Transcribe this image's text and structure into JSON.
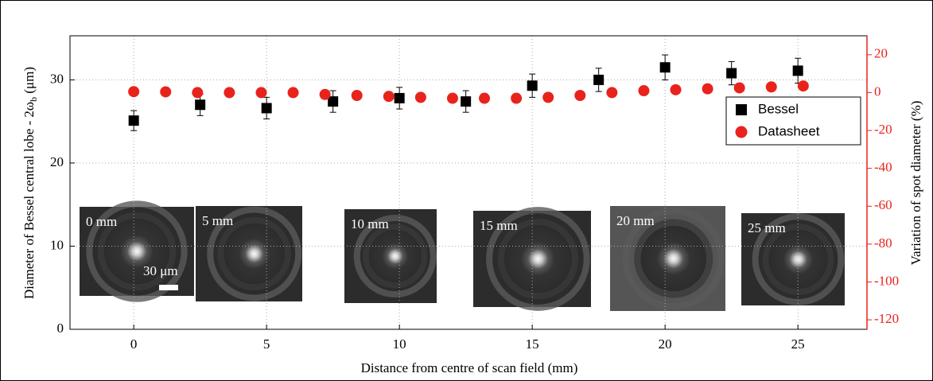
{
  "chart_data": {
    "type": "scatter",
    "xlabel": "Distance from centre of scan field (mm)",
    "ylabel": [
      "Diameter of Bessel central lobe - 2ω",
      "b",
      " (μm)"
    ],
    "y2label": "Variation of spot diameter (%)",
    "xlim": [
      -2.4,
      27.6
    ],
    "xticks": [
      0,
      5,
      10,
      15,
      20,
      25
    ],
    "ylim": [
      0,
      35.3
    ],
    "yticks": [
      0,
      10,
      20,
      30
    ],
    "y2lim": [
      -125,
      30
    ],
    "y2ticks": [
      -120,
      -100,
      -80,
      -60,
      -40,
      -20,
      0,
      20
    ],
    "y2color": "#e8231c",
    "grid": true,
    "legend": "upper right",
    "series": [
      {
        "name": "Bessel",
        "color": "#000000",
        "marker": "square",
        "x": [
          0,
          2.5,
          5,
          7.5,
          10,
          12.5,
          15,
          17.5,
          20,
          22.5,
          25
        ],
        "values": [
          25.1,
          27.0,
          26.6,
          27.4,
          27.8,
          27.4,
          29.3,
          30.0,
          31.5,
          30.8,
          31.1
        ],
        "errors": [
          1.2,
          1.3,
          1.3,
          1.3,
          1.3,
          1.3,
          1.4,
          1.4,
          1.5,
          1.4,
          1.5
        ]
      },
      {
        "name": "Datasheet",
        "color": "#e8231c",
        "marker": "circle",
        "axis": "y2",
        "x": [
          0,
          1.2,
          2.4,
          3.6,
          4.8,
          6.0,
          7.2,
          8.4,
          9.6,
          10.8,
          12.0,
          13.2,
          14.4,
          15.6,
          16.8,
          18.0,
          19.2,
          20.4,
          21.6,
          22.8,
          24.0,
          25.2
        ],
        "values": [
          0.5,
          0.4,
          0,
          0,
          0,
          0,
          -1,
          -1.5,
          -2,
          -2.5,
          -3,
          -3,
          -3,
          -2.5,
          -1.5,
          0,
          1,
          1.5,
          2,
          2.5,
          3,
          3.5
        ]
      }
    ],
    "insets": [
      "0 mm",
      "5 mm",
      "10 mm",
      "15 mm",
      "20 mm",
      "25 mm"
    ],
    "scale_bar": "30 μm"
  }
}
